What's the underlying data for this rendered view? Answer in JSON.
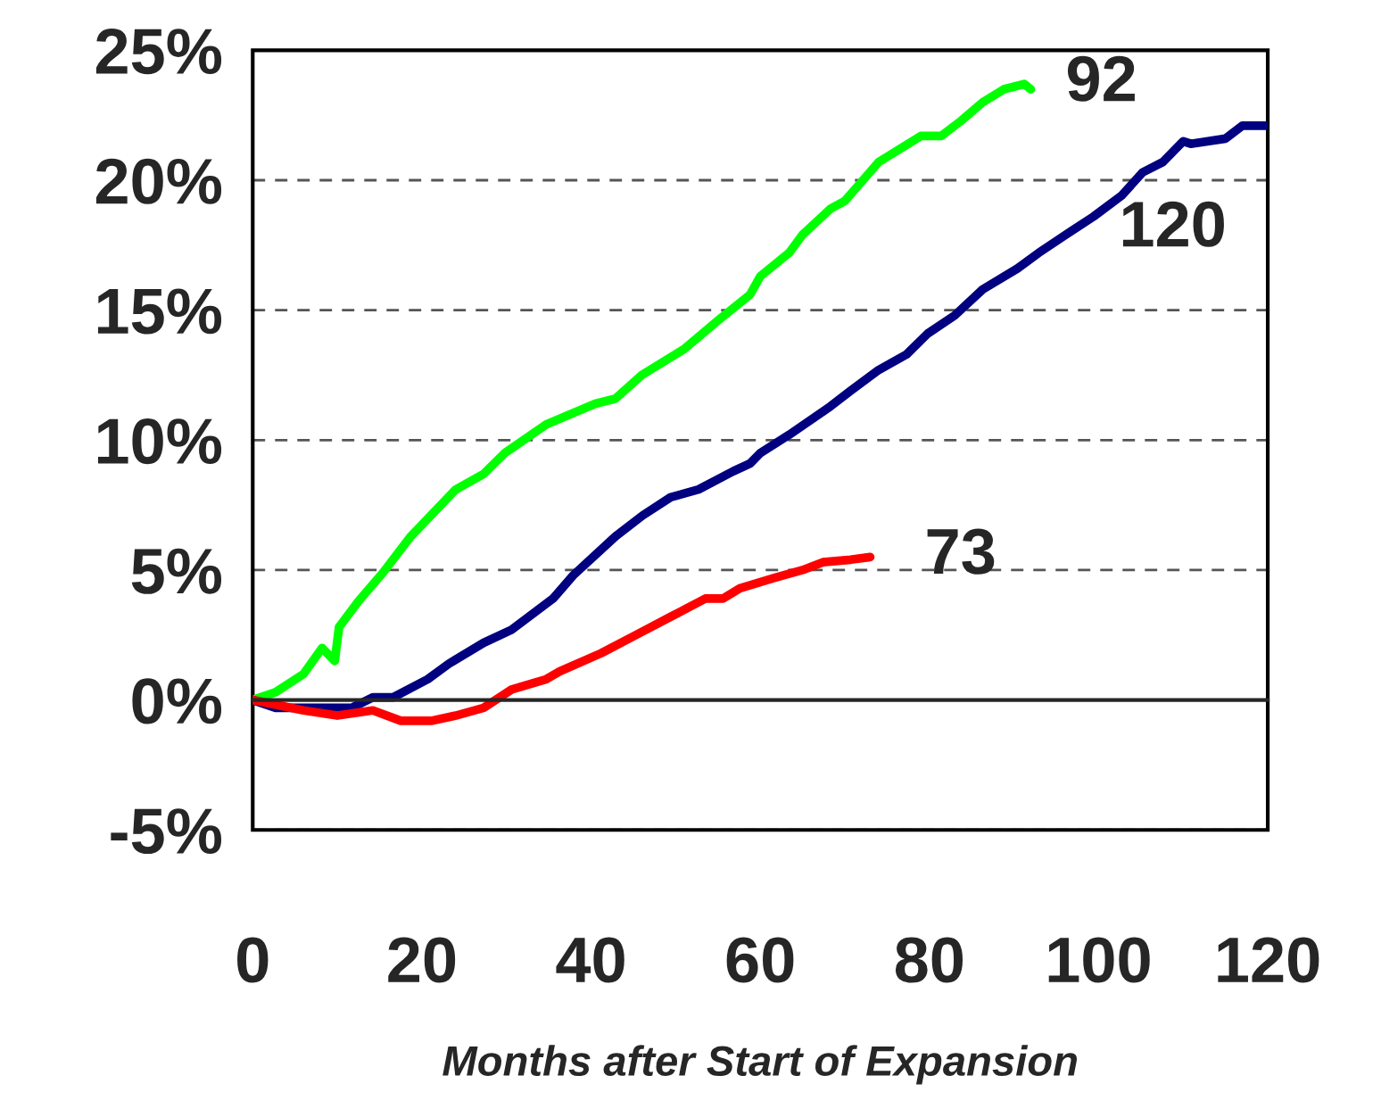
{
  "chart_data": {
    "type": "line",
    "xlabel": "Months after Start of Expansion",
    "xlim": [
      0,
      120
    ],
    "xticks": [
      0,
      20,
      40,
      60,
      80,
      100,
      120
    ],
    "ylim": [
      -5,
      25
    ],
    "yticks": [
      {
        "value": -5,
        "label": "-5%"
      },
      {
        "value": 0,
        "label": "0%"
      },
      {
        "value": 5,
        "label": "5%"
      },
      {
        "value": 10,
        "label": "10%"
      },
      {
        "value": 15,
        "label": "15%"
      },
      {
        "value": 20,
        "label": "20%"
      },
      {
        "value": 25,
        "label": "25%"
      }
    ],
    "grid": "y",
    "legend": false,
    "marker": "none",
    "line_style": "solid",
    "series": [
      {
        "name": "92",
        "color": "#00ff00",
        "x": [
          0,
          2.7,
          6,
          8.2,
          9.7,
          10.2,
          12.5,
          15.4,
          18.7,
          24,
          27.3,
          29.8,
          34.7,
          40.5,
          42.9,
          46,
          51,
          55,
          58.8,
          60,
          63.4,
          65,
          68.3,
          70,
          71.6,
          74,
          79,
          81.4,
          83.8,
          86.3,
          88.8,
          91.2,
          92
        ],
        "values": [
          0,
          0.3,
          1.0,
          2.0,
          1.5,
          2.8,
          3.8,
          4.9,
          6.3,
          8.1,
          8.7,
          9.5,
          10.6,
          11.4,
          11.6,
          12.5,
          13.5,
          14.6,
          15.6,
          16.3,
          17.2,
          17.9,
          18.9,
          19.2,
          19.8,
          20.7,
          21.7,
          21.7,
          22.3,
          23.0,
          23.5,
          23.7,
          23.5
        ]
      },
      {
        "name": "120",
        "color": "#000080",
        "x": [
          0,
          2.7,
          6,
          11.7,
          14.2,
          16.6,
          20.7,
          23.2,
          27.3,
          30.6,
          35.5,
          37.9,
          42.9,
          46.1,
          49.4,
          52.7,
          56.8,
          58.8,
          60,
          63.4,
          68.3,
          70.7,
          74,
          77.3,
          79.8,
          83,
          86.3,
          90.4,
          92.9,
          96.1,
          99.4,
          102.7,
          105.2,
          107.6,
          110,
          110.9,
          115,
          117,
          120
        ],
        "values": [
          0,
          -0.3,
          -0.3,
          -0.3,
          0.1,
          0.1,
          0.8,
          1.4,
          2.2,
          2.7,
          3.9,
          4.8,
          6.3,
          7.1,
          7.8,
          8.1,
          8.8,
          9.1,
          9.5,
          10.2,
          11.3,
          11.9,
          12.7,
          13.3,
          14.1,
          14.8,
          15.8,
          16.6,
          17.2,
          17.9,
          18.6,
          19.4,
          20.3,
          20.7,
          21.5,
          21.4,
          21.6,
          22.1,
          22.1
        ]
      },
      {
        "name": "73",
        "color": "#ff0000",
        "x": [
          0,
          6,
          10,
          14.2,
          17.5,
          21.1,
          24,
          27.3,
          30.6,
          34.7,
          36.3,
          41.2,
          45.3,
          49.4,
          53.5,
          55.6,
          57.6,
          61.7,
          65,
          67.4,
          70.7,
          73
        ],
        "values": [
          0,
          -0.4,
          -0.6,
          -0.4,
          -0.8,
          -0.8,
          -0.6,
          -0.3,
          0.4,
          0.8,
          1.1,
          1.8,
          2.5,
          3.2,
          3.9,
          3.9,
          4.3,
          4.7,
          5.0,
          5.3,
          5.4,
          5.5
        ]
      }
    ]
  }
}
